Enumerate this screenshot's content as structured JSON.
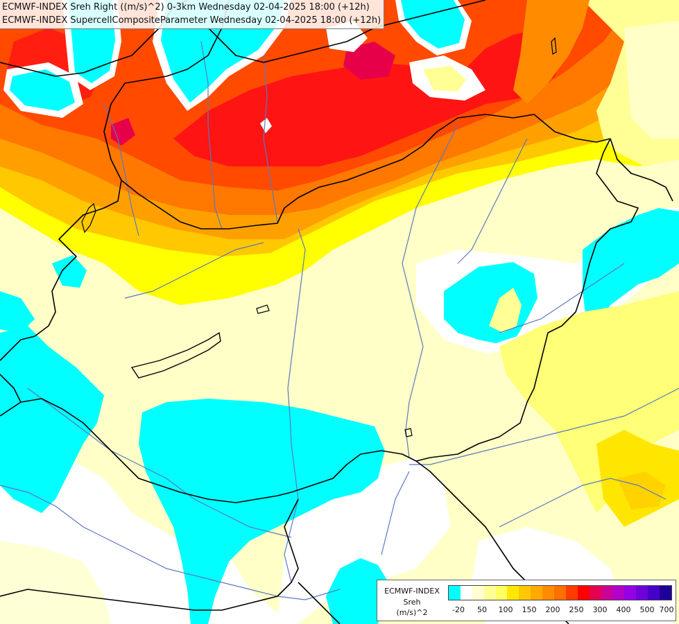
{
  "titles": {
    "line1": "ECMWF-INDEX Sreh Right ((m/s)^2) 0-3km Wednesday 02-04-2025 18:00 (+12h)",
    "line2": "ECMWF-INDEX SupercellCompositeParameter Wednesday 02-04-2025 18:00 (+12h)"
  },
  "legend": {
    "title": "ECMWF-INDEX",
    "variable": "Sreh",
    "unit": "(m/s)^2",
    "tick_labels": [
      "-20",
      "50",
      "100",
      "150",
      "200",
      "250",
      "300",
      "400",
      "500",
      "700"
    ],
    "colors": [
      "#00ffff",
      "#ffffff",
      "#ffffd0",
      "#ffff96",
      "#ffff64",
      "#ffe800",
      "#ffc800",
      "#ffaa00",
      "#ff8c00",
      "#ff6e00",
      "#ff3c00",
      "#ff0000",
      "#e60050",
      "#cd0096",
      "#b400c8",
      "#9600e6",
      "#6e00dc",
      "#4600c8",
      "#1e0096"
    ]
  },
  "colors": {
    "cyan": "#00ffff",
    "pale_yellow": "#ffffc8",
    "light_yellow": "#ffff96",
    "yellow": "#ffff00",
    "gold": "#ffd700",
    "orange": "#ffa500",
    "dark_orange": "#ff7800",
    "red_orange": "#ff3c00",
    "red": "#ff0a0a",
    "crimson": "#e60040",
    "border_line": "#000000",
    "river_line": "#5b78c0"
  }
}
